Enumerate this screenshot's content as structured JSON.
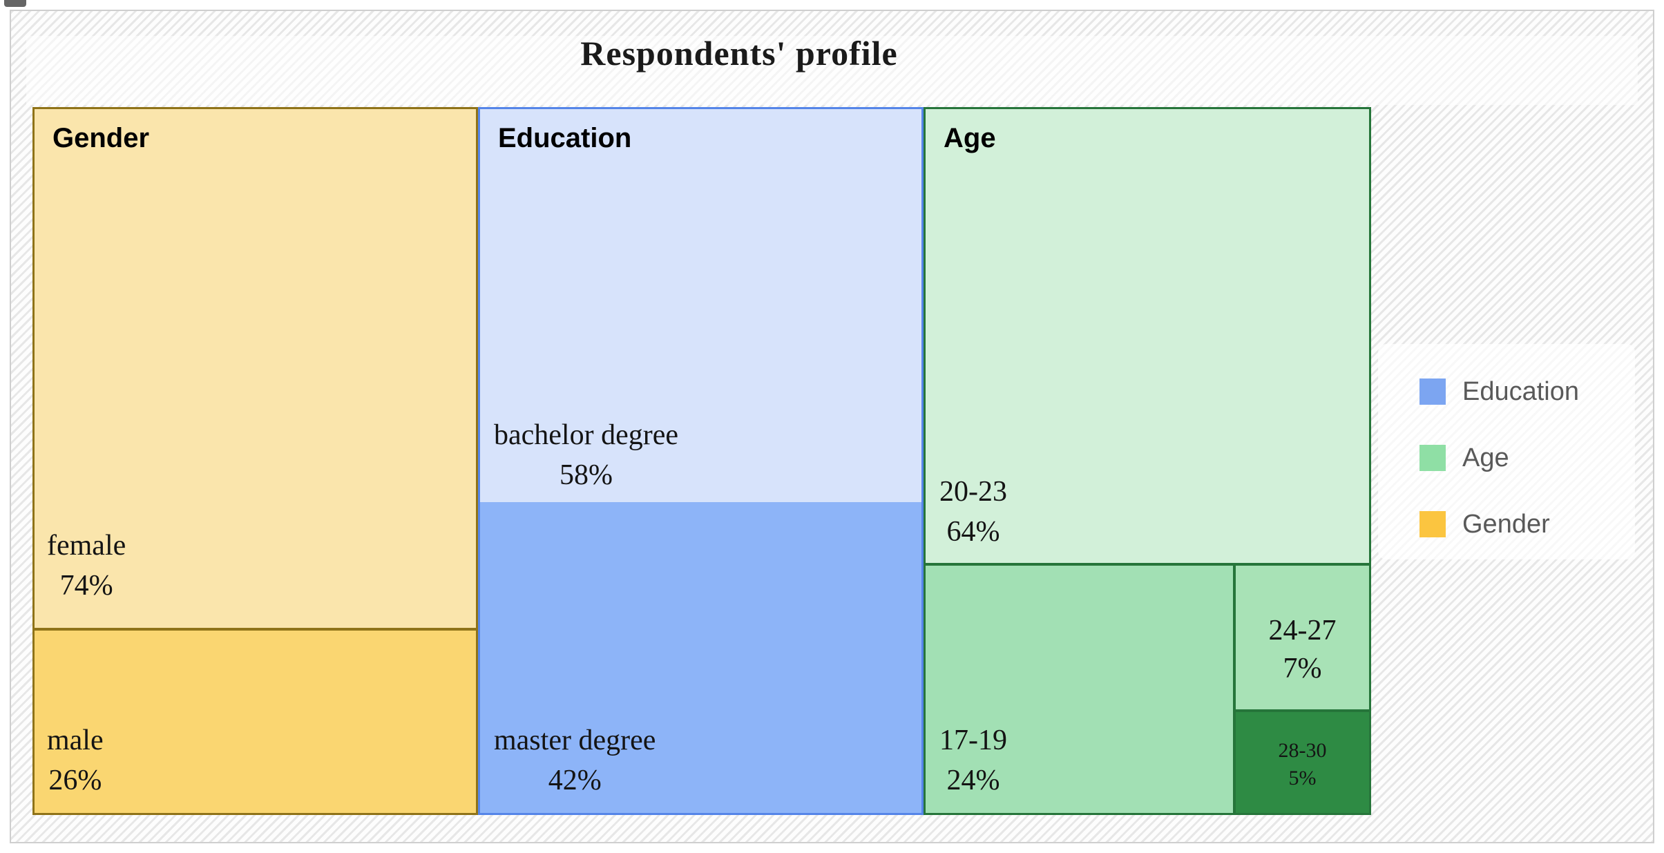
{
  "title": "Respondents' profile",
  "chart_data": {
    "type": "treemap",
    "title": "Respondents' profile",
    "legend_position": "right",
    "values_unit": "%",
    "groups": [
      {
        "name": "Gender",
        "color": "#FBC540",
        "children": [
          {
            "label": "female",
            "value": 74,
            "fill": "#FAE5AC"
          },
          {
            "label": "male",
            "value": 26,
            "fill": "#FAD671"
          }
        ]
      },
      {
        "name": "Education",
        "color": "#7CA5F1",
        "children": [
          {
            "label": "bachelor degree",
            "value": 58,
            "fill": "#D7E3FB"
          },
          {
            "label": "master degree",
            "value": 42,
            "fill": "#8DB4F8"
          }
        ]
      },
      {
        "name": "Age",
        "color": "#8FDFA5",
        "children": [
          {
            "label": "20-23",
            "value": 64,
            "fill": "#D2F0D9"
          },
          {
            "label": "17-19",
            "value": 24,
            "fill": "#A2E0B4"
          },
          {
            "label": "24-27",
            "value": 7,
            "fill": "#A8E2B6"
          },
          {
            "label": "28-30",
            "value": 5,
            "fill": "#2E8B44"
          }
        ]
      }
    ]
  },
  "headers": {
    "gender": "Gender",
    "education": "Education",
    "age": "Age"
  },
  "cells": {
    "female": {
      "name": "female",
      "pct": "74%"
    },
    "male": {
      "name": "male",
      "pct": "26%"
    },
    "bachelor": {
      "name": "bachelor degree",
      "pct": "58%"
    },
    "master": {
      "name": "master degree",
      "pct": "42%"
    },
    "age2023": {
      "name": "20-23",
      "pct": "64%"
    },
    "age1719": {
      "name": "17-19",
      "pct": "24%"
    },
    "age2427": {
      "name": "24-27",
      "pct": "7%"
    },
    "age2830": {
      "name": "28-30",
      "pct": "5%"
    }
  },
  "legend": {
    "items": [
      {
        "label": "Education",
        "color": "#7CA5F1"
      },
      {
        "label": "Age",
        "color": "#8FDFA5"
      },
      {
        "label": "Gender",
        "color": "#FBC540"
      }
    ]
  }
}
